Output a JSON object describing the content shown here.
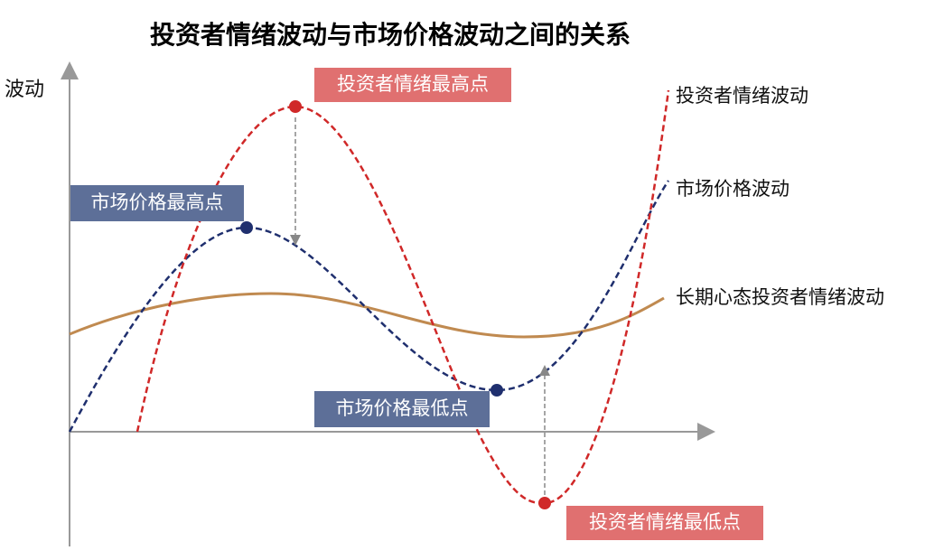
{
  "title": "投资者情绪波动与市场价格波动之间的关系",
  "y_axis_label": "波动",
  "annotations": {
    "sentiment_high": "投资者情绪最高点",
    "price_high": "市场价格最高点",
    "price_low": "市场价格最低点",
    "sentiment_low": "投资者情绪最低点"
  },
  "curve_labels": {
    "sentiment": "投资者情绪波动",
    "price": "市场价格波动",
    "long_term": "长期心态投资者情绪波动"
  }
}
